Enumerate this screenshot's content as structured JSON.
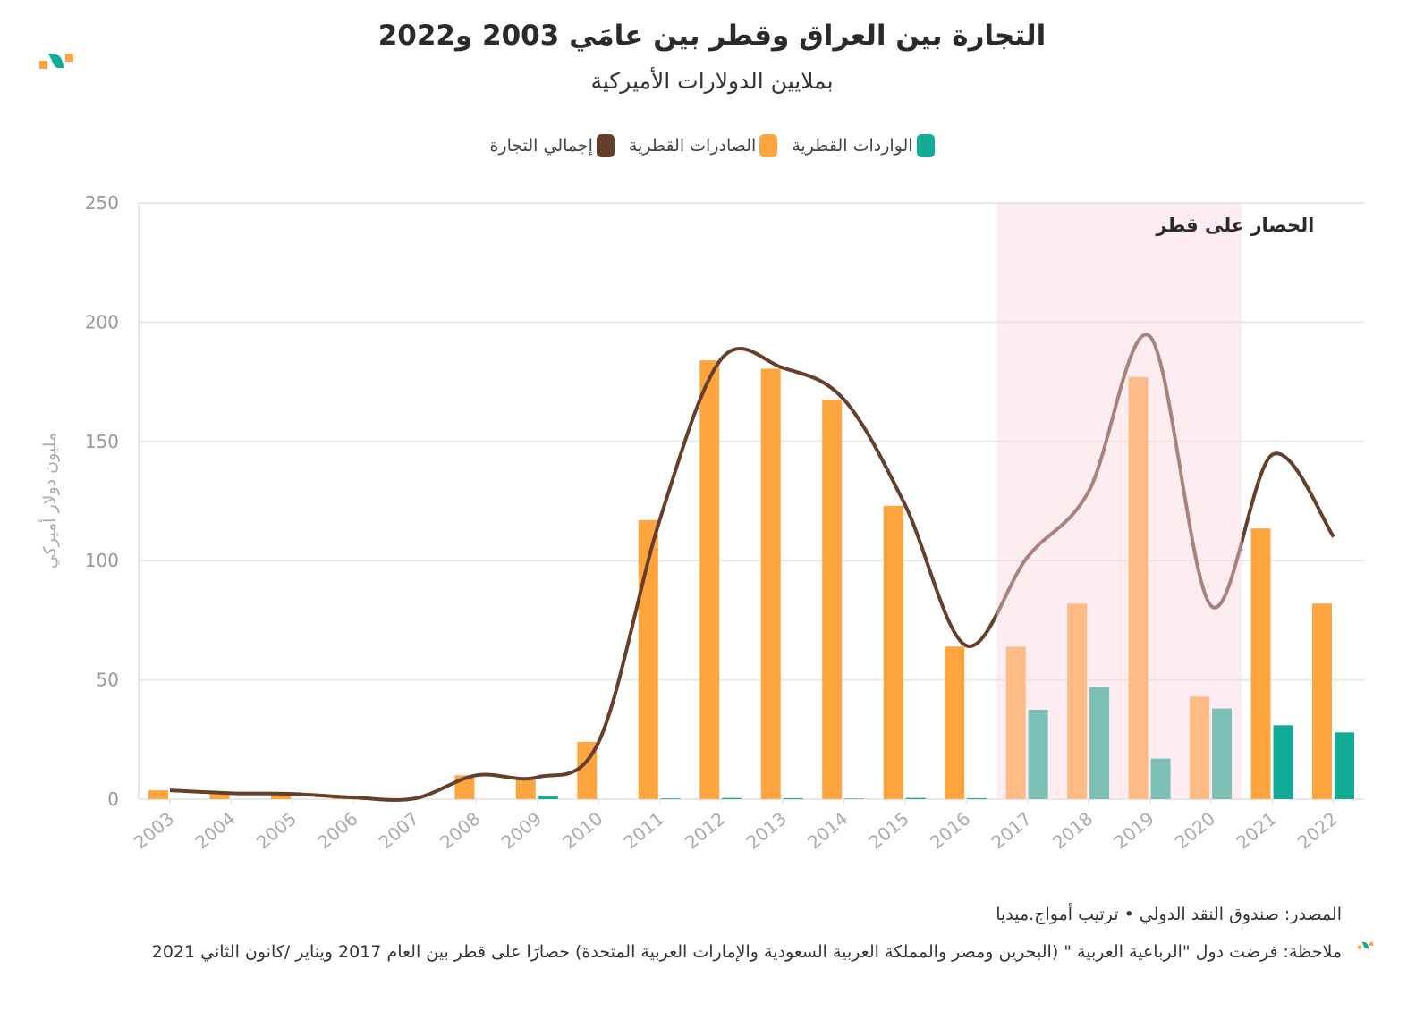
{
  "title": "التجارة بين العراق وقطر بين عامَي 2003 و2022",
  "subtitle": "بملايين الدولارات الأميركية",
  "legend": {
    "total": "إجمالي التجارة",
    "exports": "الصادرات القطرية",
    "imports": "الواردات القطرية"
  },
  "colors": {
    "exports": "#ffa53f",
    "imports": "#13ac97",
    "total": "#653f2b",
    "blockade": "#fde3e8",
    "grid": "#e8e8e8"
  },
  "footer": {
    "source": "المصدر: صندوق النقد الدولي • ترتيب أمواج.ميديا",
    "note": "ملاحظة: فرضت دول \"الرباعية العربية \" (البحرين ومصر والمملكة العربية السعودية والإمارات العربية المتحدة) حصارًا على قطر بين العام 2017 ويناير /كانون الثاني 2021"
  },
  "chart_data": {
    "type": "bar",
    "title": "التجارة بين العراق وقطر بين عامَي 2003 و2022",
    "ylabel": "مليون دولار أميركي",
    "xlabel": "",
    "ylim": [
      0,
      250
    ],
    "yticks": [
      "0",
      "50",
      "100",
      "150",
      "200",
      "250"
    ],
    "grid": true,
    "legend_position": "top",
    "categories": [
      "2003",
      "2004",
      "2005",
      "2006",
      "2007",
      "2008",
      "2009",
      "2010",
      "2011",
      "2012",
      "2013",
      "2014",
      "2015",
      "2016",
      "2017",
      "2018",
      "2019",
      "2020",
      "2021",
      "2022"
    ],
    "series": [
      {
        "name": "الصادرات القطرية",
        "type": "bar",
        "values": [
          3.7,
          2.5,
          2.2,
          0.7,
          0.3,
          10,
          8,
          24,
          117,
          184,
          180.5,
          167.5,
          123,
          64,
          64,
          82,
          177,
          43,
          113.5,
          82
        ]
      },
      {
        "name": "الواردات القطرية",
        "type": "bar",
        "values": [
          0,
          0,
          0,
          0,
          0,
          0,
          1.2,
          0,
          0.3,
          0.5,
          0.4,
          0.2,
          0.5,
          0.4,
          37.5,
          47,
          17,
          38,
          31,
          28
        ]
      },
      {
        "name": "إجمالي التجارة",
        "type": "line",
        "values": [
          3.7,
          2.5,
          2.2,
          0.7,
          0.3,
          10,
          9.2,
          24,
          117.3,
          184.5,
          180.9,
          167.7,
          123.5,
          64.4,
          101.5,
          129,
          194,
          81,
          144.5,
          110
        ]
      }
    ],
    "annotation": {
      "label": "الحصار على قطر",
      "from": "2017",
      "to": "2020"
    }
  }
}
